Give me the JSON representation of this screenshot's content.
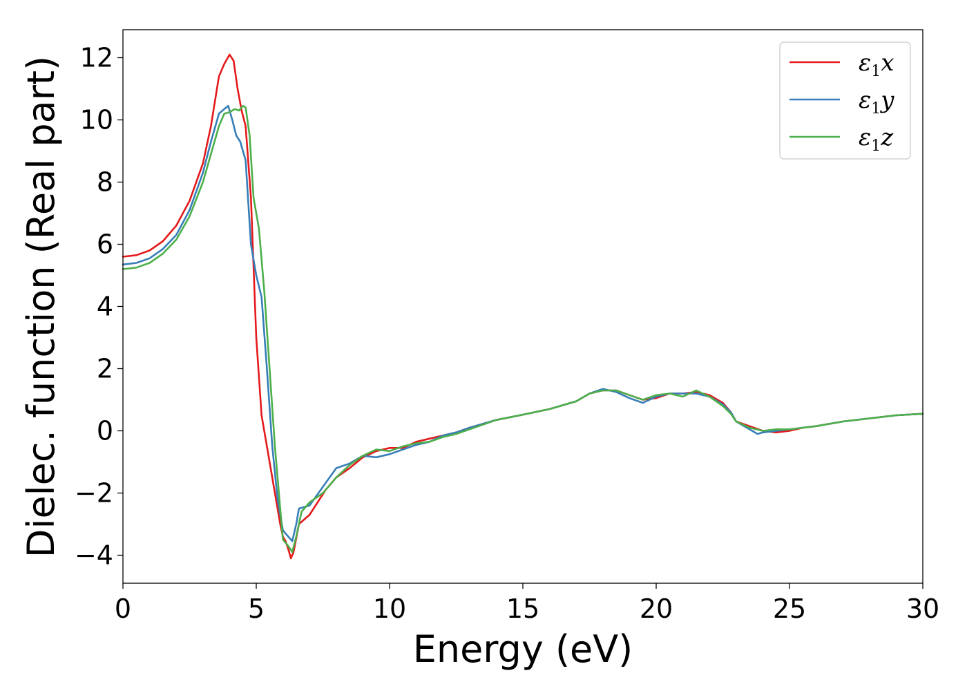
{
  "chart_data": {
    "type": "line",
    "xlabel": "Energy (eV)",
    "ylabel": "Dielec. function (Real part)",
    "xlim": [
      0,
      30
    ],
    "ylim": [
      -4.9,
      12.9
    ],
    "xticks": [
      0,
      5,
      10,
      15,
      20,
      25,
      30
    ],
    "yticks": [
      -4,
      -2,
      0,
      2,
      4,
      6,
      8,
      10,
      12
    ],
    "xtick_labels": [
      "0",
      "5",
      "10",
      "15",
      "20",
      "25",
      "30"
    ],
    "ytick_labels": [
      "−4",
      "−2",
      "0",
      "2",
      "4",
      "6",
      "8",
      "10",
      "12"
    ],
    "grid": false,
    "legend_position": "top-right",
    "series": [
      {
        "name": "ε1x",
        "legend": {
          "symbol": "ε",
          "sub": "1",
          "suffix": "x"
        },
        "color": "#e41a1c",
        "points": [
          [
            0,
            5.6
          ],
          [
            0.5,
            5.65
          ],
          [
            1,
            5.8
          ],
          [
            1.5,
            6.1
          ],
          [
            2,
            6.6
          ],
          [
            2.5,
            7.4
          ],
          [
            3,
            8.6
          ],
          [
            3.3,
            9.8
          ],
          [
            3.6,
            11.4
          ],
          [
            3.8,
            11.8
          ],
          [
            4.0,
            12.1
          ],
          [
            4.15,
            11.9
          ],
          [
            4.3,
            11.0
          ],
          [
            4.45,
            10.3
          ],
          [
            4.6,
            9.8
          ],
          [
            4.8,
            7.5
          ],
          [
            5.0,
            3.0
          ],
          [
            5.2,
            0.5
          ],
          [
            5.5,
            -1.0
          ],
          [
            5.7,
            -2.0
          ],
          [
            5.9,
            -3.0
          ],
          [
            6.0,
            -3.4
          ],
          [
            6.1,
            -3.55
          ],
          [
            6.2,
            -3.8
          ],
          [
            6.3,
            -4.1
          ],
          [
            6.4,
            -3.9
          ],
          [
            6.6,
            -3.0
          ],
          [
            7.0,
            -2.7
          ],
          [
            7.3,
            -2.3
          ],
          [
            7.6,
            -1.9
          ],
          [
            8.0,
            -1.5
          ],
          [
            8.5,
            -1.2
          ],
          [
            9.0,
            -0.85
          ],
          [
            9.5,
            -0.65
          ],
          [
            10,
            -0.55
          ],
          [
            10.5,
            -0.55
          ],
          [
            11,
            -0.35
          ],
          [
            11.5,
            -0.25
          ],
          [
            12,
            -0.15
          ],
          [
            12.5,
            -0.05
          ],
          [
            13,
            0.1
          ],
          [
            14,
            0.35
          ],
          [
            15,
            0.52
          ],
          [
            16,
            0.7
          ],
          [
            17,
            0.95
          ],
          [
            17.5,
            1.2
          ],
          [
            18,
            1.3
          ],
          [
            18.5,
            1.3
          ],
          [
            19,
            1.15
          ],
          [
            19.5,
            1.0
          ],
          [
            20,
            1.05
          ],
          [
            20.5,
            1.2
          ],
          [
            21,
            1.2
          ],
          [
            21.5,
            1.25
          ],
          [
            22,
            1.15
          ],
          [
            22.5,
            0.9
          ],
          [
            22.8,
            0.6
          ],
          [
            23,
            0.3
          ],
          [
            23.5,
            0.15
          ],
          [
            24,
            0.0
          ],
          [
            24.5,
            -0.05
          ],
          [
            25,
            0.0
          ],
          [
            25.5,
            0.1
          ],
          [
            26,
            0.15
          ],
          [
            27,
            0.3
          ],
          [
            28,
            0.4
          ],
          [
            29,
            0.5
          ],
          [
            30,
            0.55
          ]
        ]
      },
      {
        "name": "ε1y",
        "legend": {
          "symbol": "ε",
          "sub": "1",
          "suffix": "y"
        },
        "color": "#377eb8",
        "points": [
          [
            0,
            5.35
          ],
          [
            0.5,
            5.4
          ],
          [
            1,
            5.55
          ],
          [
            1.5,
            5.85
          ],
          [
            2,
            6.3
          ],
          [
            2.5,
            7.1
          ],
          [
            3,
            8.3
          ],
          [
            3.3,
            9.3
          ],
          [
            3.6,
            10.2
          ],
          [
            3.8,
            10.35
          ],
          [
            3.95,
            10.45
          ],
          [
            4.1,
            10.0
          ],
          [
            4.25,
            9.5
          ],
          [
            4.4,
            9.3
          ],
          [
            4.6,
            8.7
          ],
          [
            4.8,
            6.0
          ],
          [
            5.0,
            5.0
          ],
          [
            5.2,
            4.3
          ],
          [
            5.4,
            2.0
          ],
          [
            5.6,
            -0.5
          ],
          [
            5.8,
            -2.2
          ],
          [
            6.0,
            -3.2
          ],
          [
            6.2,
            -3.4
          ],
          [
            6.35,
            -3.55
          ],
          [
            6.5,
            -3.0
          ],
          [
            6.6,
            -2.5
          ],
          [
            7.0,
            -2.4
          ],
          [
            7.5,
            -1.8
          ],
          [
            8.0,
            -1.2
          ],
          [
            8.5,
            -1.05
          ],
          [
            9.0,
            -0.8
          ],
          [
            9.5,
            -0.85
          ],
          [
            10,
            -0.75
          ],
          [
            10.5,
            -0.6
          ],
          [
            11,
            -0.45
          ],
          [
            11.5,
            -0.35
          ],
          [
            12,
            -0.15
          ],
          [
            12.5,
            -0.05
          ],
          [
            13,
            0.1
          ],
          [
            14,
            0.35
          ],
          [
            15,
            0.52
          ],
          [
            16,
            0.7
          ],
          [
            17,
            0.95
          ],
          [
            17.5,
            1.2
          ],
          [
            18,
            1.35
          ],
          [
            18.5,
            1.25
          ],
          [
            19,
            1.05
          ],
          [
            19.5,
            0.9
          ],
          [
            20,
            1.1
          ],
          [
            20.5,
            1.2
          ],
          [
            21,
            1.2
          ],
          [
            21.5,
            1.2
          ],
          [
            22,
            1.1
          ],
          [
            22.5,
            0.85
          ],
          [
            22.8,
            0.6
          ],
          [
            23,
            0.3
          ],
          [
            23.5,
            0.05
          ],
          [
            23.8,
            -0.1
          ],
          [
            24,
            -0.05
          ],
          [
            24.5,
            0.0
          ],
          [
            25,
            0.05
          ],
          [
            25.5,
            0.1
          ],
          [
            26,
            0.15
          ],
          [
            27,
            0.3
          ],
          [
            28,
            0.4
          ],
          [
            29,
            0.5
          ],
          [
            30,
            0.55
          ]
        ]
      },
      {
        "name": "ε1z",
        "legend": {
          "symbol": "ε",
          "sub": "1",
          "suffix": "z"
        },
        "color": "#4daf4a",
        "points": [
          [
            0,
            5.2
          ],
          [
            0.5,
            5.25
          ],
          [
            1,
            5.4
          ],
          [
            1.5,
            5.7
          ],
          [
            2,
            6.15
          ],
          [
            2.5,
            6.9
          ],
          [
            3,
            8.0
          ],
          [
            3.3,
            8.9
          ],
          [
            3.6,
            9.8
          ],
          [
            3.8,
            10.2
          ],
          [
            4.0,
            10.25
          ],
          [
            4.2,
            10.35
          ],
          [
            4.35,
            10.3
          ],
          [
            4.5,
            10.45
          ],
          [
            4.6,
            10.4
          ],
          [
            4.75,
            9.5
          ],
          [
            4.9,
            7.5
          ],
          [
            5.1,
            6.5
          ],
          [
            5.3,
            4.5
          ],
          [
            5.5,
            2.0
          ],
          [
            5.7,
            -0.5
          ],
          [
            5.9,
            -2.5
          ],
          [
            6.0,
            -3.5
          ],
          [
            6.2,
            -3.7
          ],
          [
            6.35,
            -3.9
          ],
          [
            6.5,
            -3.4
          ],
          [
            6.7,
            -2.6
          ],
          [
            7.0,
            -2.3
          ],
          [
            7.5,
            -2.0
          ],
          [
            8.0,
            -1.5
          ],
          [
            8.5,
            -1.1
          ],
          [
            9.0,
            -0.8
          ],
          [
            9.5,
            -0.6
          ],
          [
            10,
            -0.65
          ],
          [
            10.5,
            -0.5
          ],
          [
            11,
            -0.4
          ],
          [
            11.5,
            -0.35
          ],
          [
            12,
            -0.2
          ],
          [
            12.5,
            -0.1
          ],
          [
            13,
            0.05
          ],
          [
            14,
            0.35
          ],
          [
            15,
            0.52
          ],
          [
            16,
            0.7
          ],
          [
            17,
            0.95
          ],
          [
            17.5,
            1.2
          ],
          [
            18,
            1.3
          ],
          [
            18.5,
            1.3
          ],
          [
            19,
            1.15
          ],
          [
            19.5,
            1.0
          ],
          [
            20,
            1.15
          ],
          [
            20.5,
            1.2
          ],
          [
            21,
            1.1
          ],
          [
            21.5,
            1.3
          ],
          [
            22,
            1.1
          ],
          [
            22.5,
            0.8
          ],
          [
            22.8,
            0.55
          ],
          [
            23,
            0.3
          ],
          [
            23.5,
            0.1
          ],
          [
            24,
            0.0
          ],
          [
            24.5,
            0.05
          ],
          [
            25,
            0.05
          ],
          [
            25.5,
            0.1
          ],
          [
            26,
            0.15
          ],
          [
            27,
            0.3
          ],
          [
            28,
            0.4
          ],
          [
            29,
            0.5
          ],
          [
            30,
            0.55
          ]
        ]
      }
    ]
  }
}
